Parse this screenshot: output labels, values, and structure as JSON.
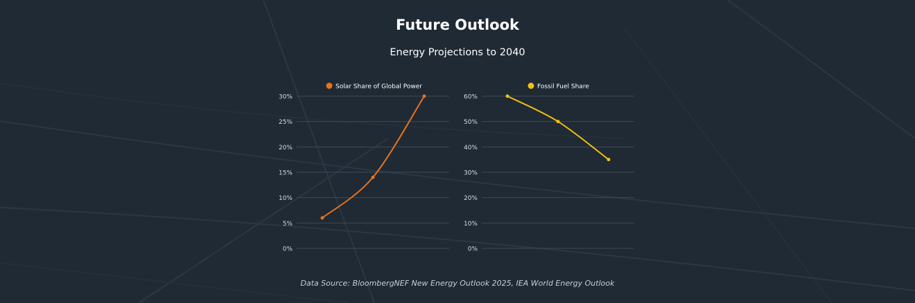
{
  "header": {
    "title": "Future Outlook",
    "subtitle": "Energy Projections to 2040"
  },
  "footer": {
    "source": "Data Source: BloombergNEF New Energy Outlook 2025, IEA World Energy Outlook"
  },
  "colors": {
    "background": "#1f2a35",
    "solar": "#e8721c",
    "fossil": "#f2c012",
    "grid": "#3d4a57",
    "tick_label": "#d6dbe0"
  },
  "chart_data": [
    {
      "type": "line",
      "series": [
        {
          "name": "Solar Share of Global Power",
          "values": [
            6,
            14,
            30
          ]
        }
      ],
      "ylim": [
        0,
        30
      ],
      "yticks": [
        "0%",
        "5%",
        "10%",
        "15%",
        "20%",
        "25%",
        "30%"
      ],
      "ytick_values": [
        0,
        5,
        10,
        15,
        20,
        25,
        30
      ],
      "legend": "top-center",
      "grid": true,
      "smooth": true
    },
    {
      "type": "line",
      "series": [
        {
          "name": "Fossil Fuel Share",
          "values": [
            60,
            50,
            35
          ]
        }
      ],
      "ylim": [
        0,
        60
      ],
      "yticks": [
        "0%",
        "10%",
        "20%",
        "30%",
        "40%",
        "50%",
        "60%"
      ],
      "ytick_values": [
        0,
        10,
        20,
        30,
        40,
        50,
        60
      ],
      "legend": "top-center",
      "grid": true,
      "smooth": true
    }
  ]
}
